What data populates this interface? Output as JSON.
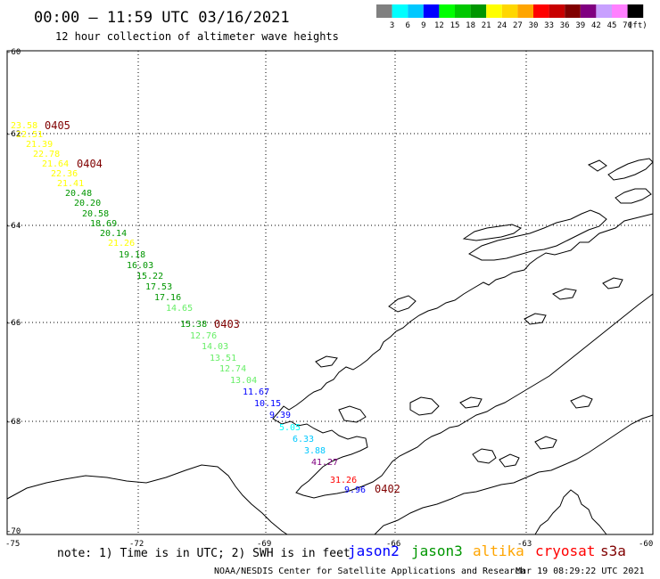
{
  "header": {
    "title": "00:00 — 11:59 UTC 03/16/2021",
    "subtitle": "12 hour collection of altimeter wave heights"
  },
  "legend": {
    "colors": [
      "#808080",
      "#00ffff",
      "#00c8ff",
      "#0000ff",
      "#00ff00",
      "#00c800",
      "#009600",
      "#ffff00",
      "#ffd700",
      "#ffa500",
      "#ff0000",
      "#c80000",
      "#800000",
      "#800080",
      "#c8a0ff",
      "#ff80ff",
      "#000000"
    ],
    "labels": [
      "3",
      "6",
      "9",
      "12",
      "15",
      "18",
      "21",
      "24",
      "27",
      "30",
      "33",
      "36",
      "39",
      "42",
      "45",
      "70"
    ],
    "unit": "(ft)"
  },
  "axes": {
    "lat_labels": [
      "-60",
      "-62",
      "-64",
      "-66",
      "-68",
      "-70"
    ],
    "lon_labels": [
      "-75",
      "-72",
      "-69",
      "-66",
      "-63",
      "-60"
    ]
  },
  "observations": [
    {
      "value": "23.58",
      "color": "#ffff00"
    },
    {
      "value": "22.51",
      "color": "#ffff00"
    },
    {
      "value": "21.39",
      "color": "#ffff00"
    },
    {
      "value": "22.78",
      "color": "#ffff00"
    },
    {
      "value": "21.64",
      "color": "#ffff00"
    },
    {
      "value": "22.36",
      "color": "#ffff00"
    },
    {
      "value": "21.41",
      "color": "#ffff00"
    },
    {
      "value": "20.48",
      "color": "#009600"
    },
    {
      "value": "20.20",
      "color": "#009600"
    },
    {
      "value": "20.58",
      "color": "#009600"
    },
    {
      "value": "18.69",
      "color": "#009600"
    },
    {
      "value": "20.14",
      "color": "#009600"
    },
    {
      "value": "21.26",
      "color": "#ffff00"
    },
    {
      "value": "19.18",
      "color": "#009600"
    },
    {
      "value": "16.03",
      "color": "#009600"
    },
    {
      "value": "15.22",
      "color": "#009600"
    },
    {
      "value": "17.53",
      "color": "#009600"
    },
    {
      "value": "17.16",
      "color": "#009600"
    },
    {
      "value": "14.65",
      "color": "#66ee66"
    },
    {
      "value": "15.38",
      "color": "#009600"
    },
    {
      "value": "12.76",
      "color": "#66ee66"
    },
    {
      "value": "14.03",
      "color": "#66ee66"
    },
    {
      "value": "13.51",
      "color": "#66ee66"
    },
    {
      "value": "12.74",
      "color": "#66ee66"
    },
    {
      "value": "13.04",
      "color": "#66ee66"
    },
    {
      "value": "11.67",
      "color": "#0000ff"
    },
    {
      "value": "10.15",
      "color": "#0000ff"
    },
    {
      "value": "9.39",
      "color": "#0000ff"
    },
    {
      "value": "5.05",
      "color": "#00ffff"
    },
    {
      "value": "6.33",
      "color": "#00c8ff"
    },
    {
      "value": "3.88",
      "color": "#00c8ff"
    },
    {
      "value": "41.27",
      "color": "#800080"
    },
    {
      "value": "31.26",
      "color": "#ff0000"
    },
    {
      "value": "9.96",
      "color": "#0000ff"
    }
  ],
  "passes": [
    {
      "id": "0405"
    },
    {
      "id": "0404"
    },
    {
      "id": "0403"
    },
    {
      "id": "0402"
    }
  ],
  "footer": {
    "note": "note: 1) Time is in UTC; 2) SWH is in feet",
    "satellites": [
      {
        "name": "jason2",
        "color": "#0000ff"
      },
      {
        "name": "jason3",
        "color": "#009600"
      },
      {
        "name": "altika",
        "color": "#ffa500"
      },
      {
        "name": "cryosat",
        "color": "#ff0000"
      },
      {
        "name": "s3a",
        "color": "#800000"
      }
    ],
    "credit": "NOAA/NESDIS Center for Satellite Applications and Research",
    "timestamp": "Mar 19 08:29:22 UTC 2021"
  }
}
